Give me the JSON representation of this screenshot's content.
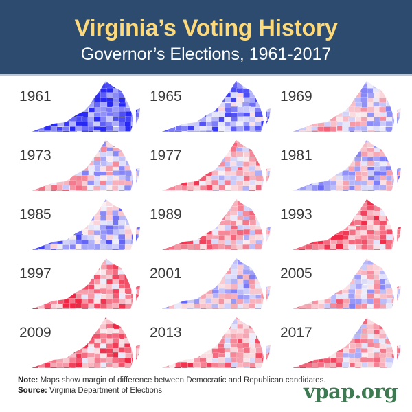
{
  "header": {
    "title": "Virginia’s Voting History",
    "subtitle": "Governor’s Elections, 1961-2017"
  },
  "colors": {
    "header_bg": "#2d4b6f",
    "title": "#fcd97a",
    "subtitle": "#ffffff",
    "democratic": "#2a2af5",
    "republican": "#f2334f",
    "logo": "#3d7a52"
  },
  "maps": [
    {
      "year": "1961",
      "lean": -0.75
    },
    {
      "year": "1965",
      "lean": -0.45
    },
    {
      "year": "1969",
      "lean": 0.05
    },
    {
      "year": "1973",
      "lean": 0.1
    },
    {
      "year": "1977",
      "lean": 0.3
    },
    {
      "year": "1981",
      "lean": -0.15
    },
    {
      "year": "1985",
      "lean": -0.3
    },
    {
      "year": "1989",
      "lean": 0.25
    },
    {
      "year": "1993",
      "lean": 0.55
    },
    {
      "year": "1997",
      "lean": 0.5
    },
    {
      "year": "2001",
      "lean": -0.1
    },
    {
      "year": "2005",
      "lean": 0.1
    },
    {
      "year": "2009",
      "lean": 0.6
    },
    {
      "year": "2013",
      "lean": 0.4
    },
    {
      "year": "2017",
      "lean": 0.3
    }
  ],
  "footer": {
    "note_label": "Note:",
    "note_text": " Maps show margin of difference between Democratic and Republican candidates.",
    "source_label": "Source:",
    "source_text": " Virginia Department of Elections",
    "logo": "vpap.org"
  }
}
